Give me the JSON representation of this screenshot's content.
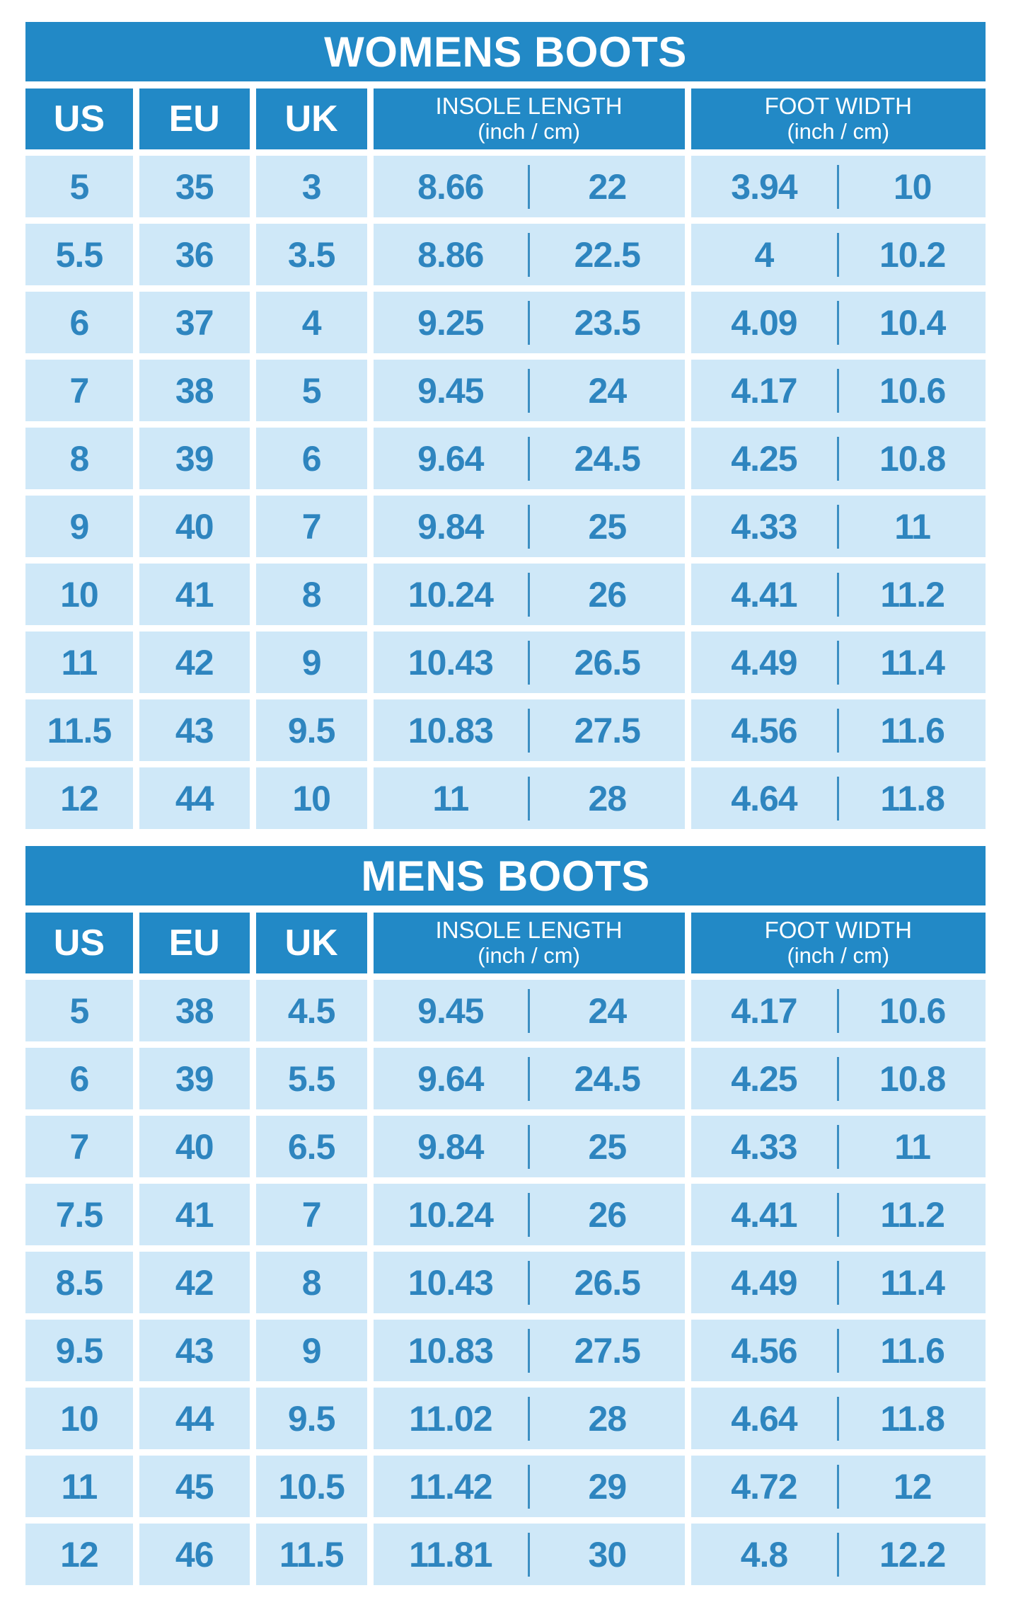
{
  "colors": {
    "header_bg": "#2289c6",
    "cell_bg": "#cfe8f8",
    "cell_text": "#2e85bf",
    "divider": "#3c8fc3",
    "page_bg": "#ffffff",
    "header_text": "#ffffff"
  },
  "tables": [
    {
      "title": "WOMENS BOOTS",
      "headers": [
        {
          "label": "US"
        },
        {
          "label": "EU"
        },
        {
          "label": "UK"
        },
        {
          "label": "INSOLE LENGTH",
          "sublabel": "(inch / cm)"
        },
        {
          "label": "FOOT WIDTH",
          "sublabel": "(inch / cm)"
        }
      ],
      "rows": [
        [
          "5",
          "35",
          "3",
          "8.66",
          "22",
          "3.94",
          "10"
        ],
        [
          "5.5",
          "36",
          "3.5",
          "8.86",
          "22.5",
          "4",
          "10.2"
        ],
        [
          "6",
          "37",
          "4",
          "9.25",
          "23.5",
          "4.09",
          "10.4"
        ],
        [
          "7",
          "38",
          "5",
          "9.45",
          "24",
          "4.17",
          "10.6"
        ],
        [
          "8",
          "39",
          "6",
          "9.64",
          "24.5",
          "4.25",
          "10.8"
        ],
        [
          "9",
          "40",
          "7",
          "9.84",
          "25",
          "4.33",
          "11"
        ],
        [
          "10",
          "41",
          "8",
          "10.24",
          "26",
          "4.41",
          "11.2"
        ],
        [
          "11",
          "42",
          "9",
          "10.43",
          "26.5",
          "4.49",
          "11.4"
        ],
        [
          "11.5",
          "43",
          "9.5",
          "10.83",
          "27.5",
          "4.56",
          "11.6"
        ],
        [
          "12",
          "44",
          "10",
          "11",
          "28",
          "4.64",
          "11.8"
        ]
      ]
    },
    {
      "title": "MENS BOOTS",
      "headers": [
        {
          "label": "US"
        },
        {
          "label": "EU"
        },
        {
          "label": "UK"
        },
        {
          "label": "INSOLE LENGTH",
          "sublabel": "(inch / cm)"
        },
        {
          "label": "FOOT WIDTH",
          "sublabel": "(inch / cm)"
        }
      ],
      "rows": [
        [
          "5",
          "38",
          "4.5",
          "9.45",
          "24",
          "4.17",
          "10.6"
        ],
        [
          "6",
          "39",
          "5.5",
          "9.64",
          "24.5",
          "4.25",
          "10.8"
        ],
        [
          "7",
          "40",
          "6.5",
          "9.84",
          "25",
          "4.33",
          "11"
        ],
        [
          "7.5",
          "41",
          "7",
          "10.24",
          "26",
          "4.41",
          "11.2"
        ],
        [
          "8.5",
          "42",
          "8",
          "10.43",
          "26.5",
          "4.49",
          "11.4"
        ],
        [
          "9.5",
          "43",
          "9",
          "10.83",
          "27.5",
          "4.56",
          "11.6"
        ],
        [
          "10",
          "44",
          "9.5",
          "11.02",
          "28",
          "4.64",
          "11.8"
        ],
        [
          "11",
          "45",
          "10.5",
          "11.42",
          "29",
          "4.72",
          "12"
        ],
        [
          "12",
          "46",
          "11.5",
          "11.81",
          "30",
          "4.8",
          "12.2"
        ]
      ]
    }
  ]
}
